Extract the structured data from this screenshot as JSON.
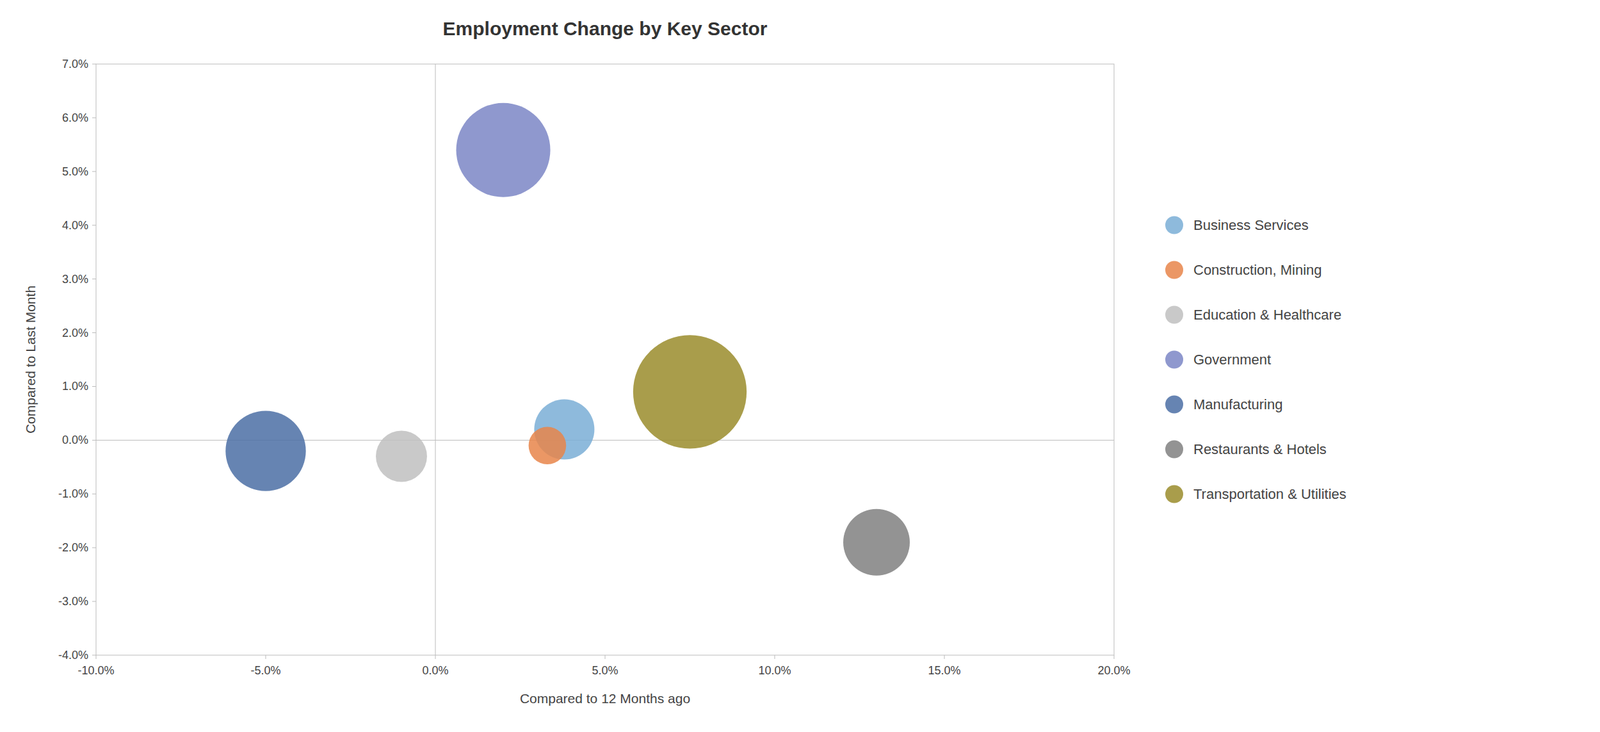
{
  "chart_data": {
    "type": "scatter",
    "title": "Employment Change by Key Sector",
    "x_label": "Compared to 12 Months ago",
    "y_label": "Compared to Last Month",
    "xlim": [
      -0.1,
      0.2
    ],
    "ylim": [
      -0.04,
      0.07
    ],
    "xticks": [
      {
        "value": -0.1,
        "label": "-10.0%"
      },
      {
        "value": -0.05,
        "label": "-5.0%"
      },
      {
        "value": 0.0,
        "label": "0.0%"
      },
      {
        "value": 0.05,
        "label": "5.0%"
      },
      {
        "value": 0.1,
        "label": "10.0%"
      },
      {
        "value": 0.15,
        "label": "15.0%"
      },
      {
        "value": 0.2,
        "label": "20.0%"
      }
    ],
    "yticks": [
      {
        "value": -0.04,
        "label": "-4.0%"
      },
      {
        "value": -0.03,
        "label": "-3.0%"
      },
      {
        "value": -0.02,
        "label": "-2.0%"
      },
      {
        "value": -0.01,
        "label": "-1.0%"
      },
      {
        "value": 0.0,
        "label": "0.0%"
      },
      {
        "value": 0.01,
        "label": "1.0%"
      },
      {
        "value": 0.02,
        "label": "2.0%"
      },
      {
        "value": 0.03,
        "label": "3.0%"
      },
      {
        "value": 0.04,
        "label": "4.0%"
      },
      {
        "value": 0.05,
        "label": "5.0%"
      },
      {
        "value": 0.06,
        "label": "6.0%"
      },
      {
        "value": 0.07,
        "label": "7.0%"
      }
    ],
    "grid": false,
    "legend": "right",
    "series": [
      {
        "name": "Business Services",
        "color": "#7aaed6",
        "x": [
          0.038
        ],
        "values": [
          0.002
        ],
        "sizes": [
          900
        ]
      },
      {
        "name": "Construction, Mining",
        "color": "#e8854a",
        "x": [
          0.033
        ],
        "values": [
          -0.001
        ],
        "sizes": [
          350
        ]
      },
      {
        "name": "Education & Healthcare",
        "color": "#bfbfbf",
        "x": [
          -0.01
        ],
        "values": [
          -0.003
        ],
        "sizes": [
          650
        ]
      },
      {
        "name": "Government",
        "color": "#7b86c6",
        "x": [
          0.02
        ],
        "values": [
          0.054
        ],
        "sizes": [
          2200
        ]
      },
      {
        "name": "Manufacturing",
        "color": "#4b6fa5",
        "x": [
          -0.05
        ],
        "values": [
          -0.002
        ],
        "sizes": [
          1600
        ]
      },
      {
        "name": "Restaurants & Hotels",
        "color": "#808080",
        "x": [
          0.13
        ],
        "values": [
          -0.019
        ],
        "sizes": [
          1100
        ]
      },
      {
        "name": "Transportation & Utilities",
        "color": "#9a8c2c",
        "x": [
          0.075
        ],
        "values": [
          0.009
        ],
        "sizes": [
          3200
        ]
      }
    ]
  }
}
